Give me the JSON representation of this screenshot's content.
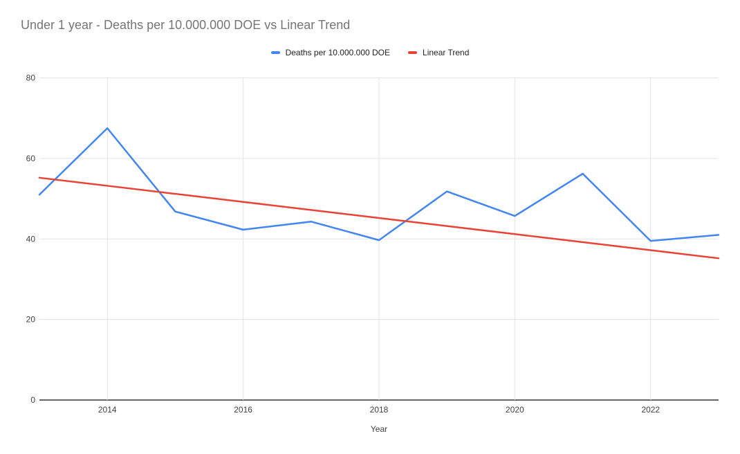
{
  "chart": {
    "title": "Under 1 year - Deaths per 10.000.000 DOE vs Linear Trend",
    "xlabel": "Year",
    "legend": [
      {
        "label": "Deaths per 10.000.000 DOE",
        "color": "#4285F4"
      },
      {
        "label": "Linear Trend",
        "color": "#EA4335"
      }
    ]
  },
  "chart_data": {
    "type": "line",
    "title": "Under 1 year - Deaths per 10.000.000 DOE vs Linear Trend",
    "xlabel": "Year",
    "ylabel": "",
    "x": [
      2013,
      2014,
      2015,
      2016,
      2017,
      2018,
      2019,
      2020,
      2021,
      2022,
      2023
    ],
    "series": [
      {
        "name": "Deaths per 10.000.000 DOE",
        "color": "#4285F4",
        "values": [
          51.0,
          67.5,
          46.8,
          42.3,
          44.3,
          39.7,
          51.8,
          45.7,
          56.2,
          39.5,
          41.0
        ]
      },
      {
        "name": "Linear Trend",
        "color": "#EA4335",
        "values": [
          55.2,
          53.2,
          51.2,
          49.2,
          47.2,
          45.2,
          43.2,
          41.2,
          39.2,
          37.2,
          35.2
        ]
      }
    ],
    "ylim": [
      0,
      80
    ],
    "yticks": [
      0,
      20,
      40,
      60,
      80
    ],
    "xticks": [
      2014,
      2016,
      2018,
      2020,
      2022
    ],
    "grid": true,
    "legend_position": "top",
    "colors": {
      "gridline": "#e3e3e3",
      "axis_line": "#333333",
      "tick_label": "#424242",
      "title_text": "#757575"
    }
  }
}
